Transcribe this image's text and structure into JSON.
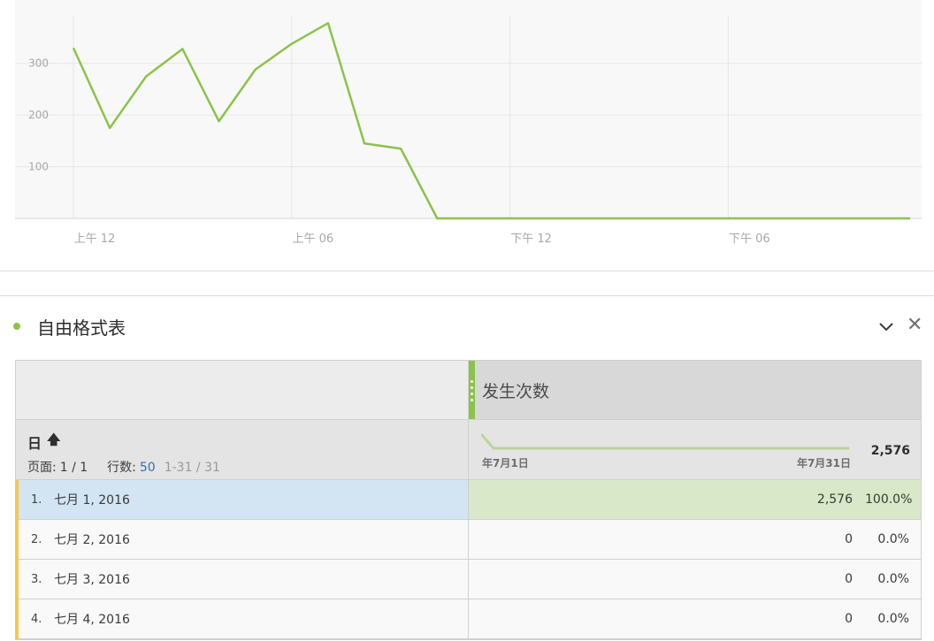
{
  "chart": {
    "chart_data": {
      "type": "line",
      "series": [
        {
          "values": [
            330,
            175,
            275,
            328,
            188,
            288,
            338,
            378,
            145,
            135,
            0,
            0,
            0,
            0,
            0,
            0,
            0,
            0,
            0,
            0,
            0,
            0,
            0,
            0
          ]
        }
      ],
      "x": [
        "00",
        "01",
        "02",
        "03",
        "04",
        "05",
        "06",
        "07",
        "08",
        "09",
        "10",
        "11",
        "12",
        "13",
        "14",
        "15",
        "16",
        "17",
        "18",
        "19",
        "20",
        "21",
        "22",
        "23"
      ],
      "y_ticks": [
        "100",
        "200",
        "300"
      ],
      "x_tick_labels": [
        {
          "at": 0,
          "label": "上午 12"
        },
        {
          "at": 6,
          "label": "上午 06"
        },
        {
          "at": 12,
          "label": "下午 12"
        },
        {
          "at": 18,
          "label": "下午 06"
        }
      ],
      "ylim": [
        0,
        380
      ],
      "grid": true,
      "color": "#8bc34a"
    }
  },
  "panel": {
    "title": "自由格式表",
    "collapse_icon": "chevron-down-icon",
    "close_icon": "close-icon",
    "close_glyph": "✕"
  },
  "table": {
    "metric_title": "发生次数",
    "dimension": "日",
    "sort_glyph": "🡅",
    "page_label": "页面:",
    "page_value": "1 / 1",
    "rows_label": "行数:",
    "rows_value": "50",
    "range": "1-31 / 31",
    "spark_start": "年7月1日",
    "spark_end": "年7月31日",
    "total": "2,576",
    "rows": [
      {
        "idx": "1.",
        "label": "七月 1, 2016",
        "value": "2,576",
        "pct": "100.0%"
      },
      {
        "idx": "2.",
        "label": "七月 2, 2016",
        "value": "0",
        "pct": "0.0%"
      },
      {
        "idx": "3.",
        "label": "七月 3, 2016",
        "value": "0",
        "pct": "0.0%"
      },
      {
        "idx": "4.",
        "label": "七月 4, 2016",
        "value": "0",
        "pct": "0.0%"
      }
    ]
  }
}
